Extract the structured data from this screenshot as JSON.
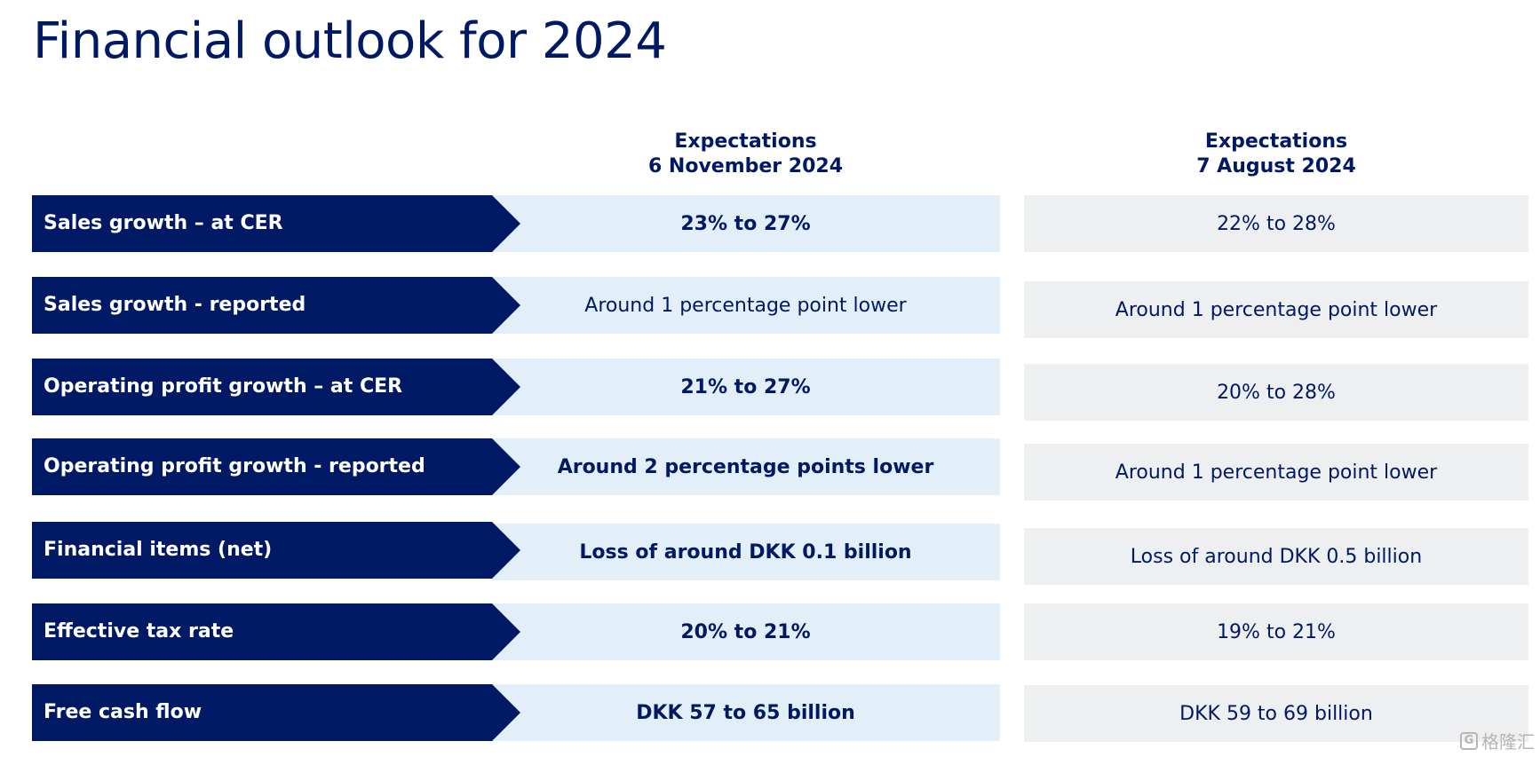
{
  "title": "Financial outlook for 2024",
  "columns": {
    "nov": {
      "line1": "Expectations",
      "line2": "6 November 2024"
    },
    "aug": {
      "line1": "Expectations",
      "line2": "7 August 2024"
    }
  },
  "rows": [
    {
      "label": "Sales growth – at CER",
      "nov": "23% to 27%",
      "aug": "22% to 28%"
    },
    {
      "label": "Sales growth - reported",
      "nov": "Around 1 percentage point lower",
      "aug": "Around 1 percentage point lower"
    },
    {
      "label": "Operating profit growth – at CER",
      "nov": "21% to 27%",
      "aug": "20% to 28%"
    },
    {
      "label": "Operating profit growth - reported",
      "nov": "Around 2 percentage points lower",
      "aug": "Around 1 percentage point lower"
    },
    {
      "label": "Financial items (net)",
      "nov": "Loss of around DKK 0.1 billion",
      "aug": "Loss of around DKK 0.5 billion"
    },
    {
      "label": "Effective tax rate",
      "nov": "20% to 21%",
      "aug": "19% to 21%"
    },
    {
      "label": "Free cash flow",
      "nov": "DKK 57 to 65 billion",
      "aug": "DKK 59 to 69 billion"
    }
  ],
  "watermark": {
    "text": "格隆汇",
    "icon": "g-logo-icon"
  },
  "colors": {
    "navy": "#001965",
    "light_blue": "#e2eef8",
    "light_gray": "#eeeff0"
  }
}
